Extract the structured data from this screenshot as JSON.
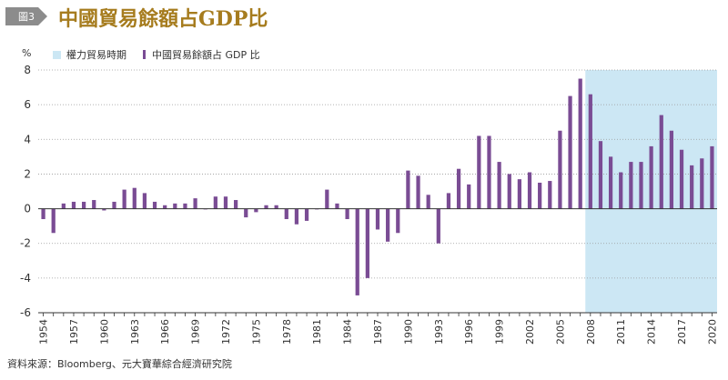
{
  "header": {
    "figure_tag": "圖3",
    "title": "中國貿易餘額占GDP比"
  },
  "legend": {
    "shade_label": "權力貿易時期",
    "bar_label": "中國貿易餘額占 GDP 比"
  },
  "footer": {
    "source": "資料來源：Bloomberg、元大寶華綜合經濟研究院"
  },
  "colors": {
    "bar": "#7a4c94",
    "shade": "#cce7f4",
    "title": "#a67c1e",
    "tag": "#8c8c8c"
  },
  "chart_data": {
    "type": "bar",
    "title": "中國貿易餘額占GDP比",
    "ylabel": "%",
    "xlabel": "",
    "ylim": [
      -6,
      8
    ],
    "yticks": [
      -6,
      -4,
      -2,
      0,
      2,
      4,
      6,
      8
    ],
    "grid": "horizontal dotted",
    "legend_position": "top-left",
    "x_tick_labels": [
      "1954",
      "1957",
      "1960",
      "1963",
      "1966",
      "1969",
      "1972",
      "1975",
      "1978",
      "1981",
      "1984",
      "1987",
      "1990",
      "1993",
      "1996",
      "1999",
      "2002",
      "2005",
      "2008",
      "2011",
      "2014",
      "2017",
      "2020"
    ],
    "shaded_region": {
      "label": "權力貿易時期",
      "from": 2008,
      "to": 2020
    },
    "series": [
      {
        "name": "中國貿易餘額占 GDP 比",
        "x": [
          1954,
          1955,
          1956,
          1957,
          1958,
          1959,
          1960,
          1961,
          1962,
          1963,
          1964,
          1965,
          1966,
          1967,
          1968,
          1969,
          1970,
          1971,
          1972,
          1973,
          1974,
          1975,
          1976,
          1977,
          1978,
          1979,
          1980,
          1981,
          1982,
          1983,
          1984,
          1985,
          1986,
          1987,
          1988,
          1989,
          1990,
          1991,
          1992,
          1993,
          1994,
          1995,
          1996,
          1997,
          1998,
          1999,
          2000,
          2001,
          2002,
          2003,
          2004,
          2005,
          2006,
          2007,
          2008,
          2009,
          2010,
          2011,
          2012,
          2013,
          2014,
          2015,
          2016,
          2017,
          2018,
          2019,
          2020
        ],
        "values": [
          -0.6,
          -1.4,
          0.3,
          0.4,
          0.4,
          0.5,
          -0.1,
          0.4,
          1.1,
          1.2,
          0.9,
          0.4,
          0.2,
          0.3,
          0.3,
          0.6,
          0.0,
          0.7,
          0.7,
          0.5,
          -0.5,
          -0.2,
          0.2,
          0.2,
          -0.6,
          -0.9,
          -0.7,
          0.0,
          1.1,
          0.3,
          -0.6,
          -5.0,
          -4.0,
          -1.2,
          -1.9,
          -1.4,
          2.2,
          1.9,
          0.8,
          -2.0,
          0.9,
          2.3,
          1.4,
          4.2,
          4.2,
          2.7,
          2.0,
          1.7,
          2.1,
          1.5,
          1.6,
          4.5,
          6.5,
          7.5,
          6.6,
          3.9,
          3.0,
          2.1,
          2.7,
          2.7,
          3.6,
          5.4,
          4.5,
          3.4,
          2.5,
          2.9,
          3.6
        ]
      }
    ]
  }
}
